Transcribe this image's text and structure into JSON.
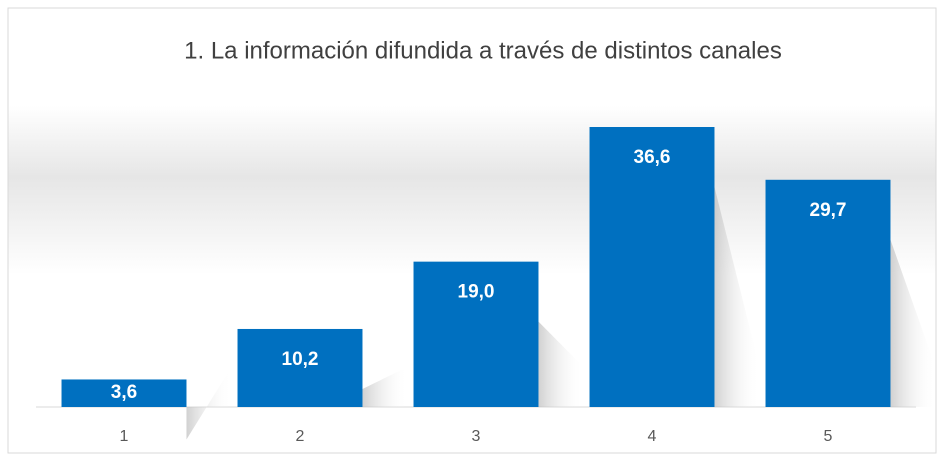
{
  "chart_data": {
    "type": "bar",
    "title": "1. La información difundida a través de distintos canales",
    "categories": [
      "1",
      "2",
      "3",
      "4",
      "5"
    ],
    "values": [
      3.6,
      10.2,
      19.0,
      36.6,
      29.7
    ],
    "value_labels": [
      "3,6",
      "10,2",
      "19,0",
      "36,6",
      "29,7"
    ],
    "color": "#0070c0"
  }
}
